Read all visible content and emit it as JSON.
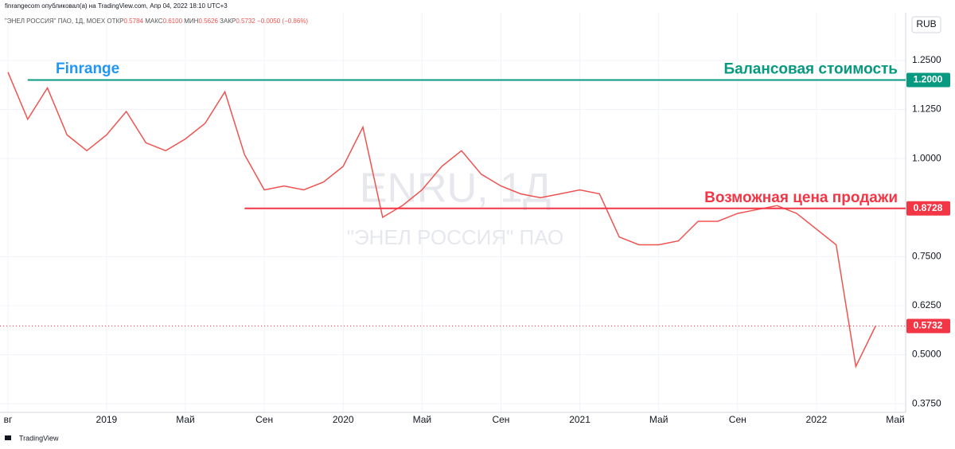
{
  "header": {
    "publisher": "finrangecom опубликовал(а) на TradingView.com, Апр 04, 2022 18:10 UTC+3",
    "symbol": "\"ЭНЕЛ РОССИЯ\" ПАО, 1Д, MOEX",
    "open_label": "ОТКР",
    "open": "0.5784",
    "high_label": "МАКС",
    "high": "0.6100",
    "low_label": "МИН",
    "low": "0.5626",
    "close_label": "ЗАКР",
    "close": "0.5732",
    "change": "−0.0050 (−0.86%)"
  },
  "watermark": {
    "ticker": "ENRU, 1Д",
    "name": "\"ЭНЕЛ РОССИЯ\" ПАО"
  },
  "currency": "RUB",
  "footer": "TradingView",
  "chart_data": {
    "type": "line",
    "color": "#ef5350",
    "x": [
      "2018-08",
      "2018-09",
      "2018-10",
      "2018-11",
      "2018-12",
      "2019-01",
      "2019-02",
      "2019-03",
      "2019-04",
      "2019-05",
      "2019-06",
      "2019-07",
      "2019-08",
      "2019-09",
      "2019-10",
      "2019-11",
      "2019-12",
      "2020-01",
      "2020-02",
      "2020-03",
      "2020-04",
      "2020-05",
      "2020-06",
      "2020-07",
      "2020-08",
      "2020-09",
      "2020-10",
      "2020-11",
      "2020-12",
      "2021-01",
      "2021-02",
      "2021-03",
      "2021-04",
      "2021-05",
      "2021-06",
      "2021-07",
      "2021-08",
      "2021-09",
      "2021-10",
      "2021-11",
      "2021-12",
      "2022-01",
      "2022-02",
      "2022-03",
      "2022-04"
    ],
    "values": [
      1.22,
      1.1,
      1.18,
      1.06,
      1.02,
      1.06,
      1.12,
      1.04,
      1.02,
      1.05,
      1.09,
      1.17,
      1.01,
      0.92,
      0.93,
      0.92,
      0.94,
      0.98,
      1.08,
      0.85,
      0.88,
      0.92,
      0.98,
      1.02,
      0.96,
      0.93,
      0.91,
      0.9,
      0.91,
      0.92,
      0.91,
      0.8,
      0.78,
      0.78,
      0.79,
      0.84,
      0.84,
      0.86,
      0.87,
      0.88,
      0.86,
      0.82,
      0.78,
      0.47,
      0.5732
    ],
    "xlim": [
      "2018-08",
      "2022-05"
    ],
    "xticks": [
      {
        "value": "2018-08",
        "label": "вг"
      },
      {
        "value": "2019-01",
        "label": "2019"
      },
      {
        "value": "2019-05",
        "label": "Май"
      },
      {
        "value": "2019-09",
        "label": "Сен"
      },
      {
        "value": "2020-01",
        "label": "2020"
      },
      {
        "value": "2020-05",
        "label": "Май"
      },
      {
        "value": "2020-09",
        "label": "Сен"
      },
      {
        "value": "2021-01",
        "label": "2021"
      },
      {
        "value": "2021-05",
        "label": "Май"
      },
      {
        "value": "2021-09",
        "label": "Сен"
      },
      {
        "value": "2022-01",
        "label": "2022"
      },
      {
        "value": "2022-05",
        "label": "Май"
      }
    ],
    "ylim": [
      0.353,
      1.404
    ],
    "yticks": [
      {
        "value": 0.375,
        "label": "0.3750"
      },
      {
        "value": 0.5,
        "label": "0.5000"
      },
      {
        "value": 0.625,
        "label": "0.6250"
      },
      {
        "value": 0.75,
        "label": "0.7500"
      },
      {
        "value": 1,
        "label": "1.0000"
      },
      {
        "value": 1.125,
        "label": "1.1250"
      },
      {
        "value": 1.25,
        "label": "1.2500"
      }
    ],
    "grid": true,
    "levels": [
      {
        "name": "Балансовая стоимость",
        "value": 1.2,
        "label": "1.2000",
        "color": "#089981",
        "start": "2018-09"
      },
      {
        "name": "Возможная цена продажи",
        "value": 0.8728,
        "label": "0.8728",
        "color": "#f23645",
        "start": "2019-08"
      }
    ],
    "last_price": {
      "value": 0.5732,
      "label": "0.5732",
      "color": "#f23645"
    },
    "annotations": [
      {
        "text": "Finrange",
        "color": "#2196f3"
      }
    ]
  }
}
